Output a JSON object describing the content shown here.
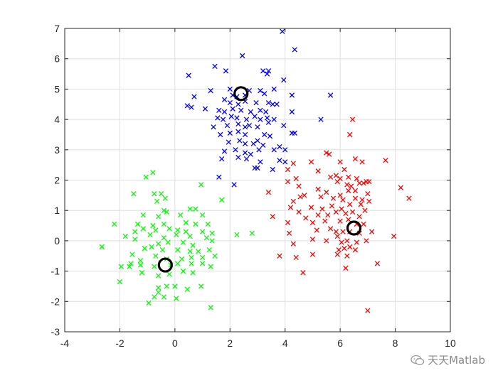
{
  "chart_data": {
    "type": "scatter",
    "title": "",
    "xlabel": "",
    "ylabel": "",
    "xlim": [
      -4,
      10
    ],
    "ylim": [
      -3,
      7
    ],
    "xticks": [
      -4,
      -2,
      0,
      2,
      4,
      6,
      8,
      10
    ],
    "yticks": [
      -3,
      -2,
      -1,
      0,
      1,
      2,
      3,
      4,
      5,
      6,
      7
    ],
    "grid": true,
    "legend": "none",
    "marker": "x",
    "series": [
      {
        "color": "#0000ff",
        "points": [
          [
            3.9,
            6.9
          ],
          [
            4.35,
            6.3
          ],
          [
            2.45,
            6.1
          ],
          [
            1.45,
            5.75
          ],
          [
            1.85,
            5.6
          ],
          [
            0.5,
            5.45
          ],
          [
            3.2,
            5.6
          ],
          [
            3.4,
            5.6
          ],
          [
            3.35,
            5.5
          ],
          [
            3.95,
            5.3
          ],
          [
            0.7,
            4.75
          ],
          [
            2.0,
            5.0
          ],
          [
            2.7,
            4.95
          ],
          [
            3.1,
            4.95
          ],
          [
            3.6,
            5.0
          ],
          [
            1.3,
            4.95
          ],
          [
            2.1,
            4.8
          ],
          [
            2.25,
            4.75
          ],
          [
            2.55,
            4.8
          ],
          [
            3.25,
            4.85
          ],
          [
            4.25,
            4.8
          ],
          [
            5.65,
            4.8
          ],
          [
            0.45,
            4.45
          ],
          [
            0.6,
            4.4
          ],
          [
            1.1,
            4.35
          ],
          [
            1.8,
            4.65
          ],
          [
            2.0,
            4.55
          ],
          [
            2.3,
            4.5
          ],
          [
            2.55,
            4.6
          ],
          [
            2.95,
            4.55
          ],
          [
            3.4,
            4.55
          ],
          [
            3.55,
            4.5
          ],
          [
            3.7,
            4.5
          ],
          [
            1.6,
            4.3
          ],
          [
            1.8,
            4.25
          ],
          [
            2.1,
            4.35
          ],
          [
            2.4,
            4.3
          ],
          [
            2.75,
            4.25
          ],
          [
            3.1,
            4.3
          ],
          [
            3.3,
            4.25
          ],
          [
            4.25,
            4.25
          ],
          [
            1.55,
            4.05
          ],
          [
            1.75,
            4.0
          ],
          [
            2.05,
            4.1
          ],
          [
            2.25,
            4.05
          ],
          [
            2.6,
            4.0
          ],
          [
            2.9,
            4.1
          ],
          [
            3.1,
            4.0
          ],
          [
            3.35,
            4.05
          ],
          [
            3.6,
            4.0
          ],
          [
            1.4,
            3.75
          ],
          [
            1.9,
            3.8
          ],
          [
            2.3,
            3.85
          ],
          [
            2.55,
            3.75
          ],
          [
            2.7,
            3.8
          ],
          [
            3.0,
            3.75
          ],
          [
            3.4,
            3.9
          ],
          [
            5.3,
            4.0
          ],
          [
            1.65,
            3.5
          ],
          [
            2.0,
            3.55
          ],
          [
            2.3,
            3.6
          ],
          [
            2.55,
            3.5
          ],
          [
            3.25,
            3.5
          ],
          [
            3.45,
            3.45
          ],
          [
            3.95,
            3.8
          ],
          [
            4.25,
            3.55
          ],
          [
            4.35,
            3.55
          ],
          [
            1.95,
            3.25
          ],
          [
            2.35,
            3.3
          ],
          [
            2.55,
            3.2
          ],
          [
            2.85,
            3.2
          ],
          [
            3.0,
            3.3
          ],
          [
            3.2,
            3.15
          ],
          [
            1.8,
            2.95
          ],
          [
            2.2,
            3.0
          ],
          [
            2.55,
            2.9
          ],
          [
            2.75,
            2.85
          ],
          [
            3.05,
            3.0
          ],
          [
            3.6,
            3.0
          ],
          [
            3.8,
            3.1
          ],
          [
            4.0,
            3.0
          ],
          [
            1.7,
            2.7
          ],
          [
            2.3,
            2.75
          ],
          [
            2.6,
            2.7
          ],
          [
            3.1,
            2.6
          ],
          [
            3.8,
            2.65
          ],
          [
            4.0,
            2.6
          ],
          [
            2.9,
            2.4
          ],
          [
            3.55,
            2.35
          ],
          [
            1.6,
            2.1
          ],
          [
            2.15,
            1.85
          ],
          [
            3.0,
            2.4
          ]
        ]
      },
      {
        "color": "#ff0000",
        "points": [
          [
            6.45,
            4.0
          ],
          [
            6.35,
            3.5
          ],
          [
            5.5,
            2.9
          ],
          [
            5.6,
            2.85
          ],
          [
            6.55,
            2.7
          ],
          [
            4.3,
            2.55
          ],
          [
            4.95,
            2.6
          ],
          [
            6.0,
            2.6
          ],
          [
            6.8,
            2.6
          ],
          [
            7.65,
            2.65
          ],
          [
            4.1,
            2.35
          ],
          [
            5.2,
            2.3
          ],
          [
            6.15,
            2.35
          ],
          [
            5.85,
            2.15
          ],
          [
            6.3,
            2.1
          ],
          [
            4.1,
            1.95
          ],
          [
            4.4,
            2.05
          ],
          [
            5.65,
            2.1
          ],
          [
            6.0,
            2.05
          ],
          [
            6.6,
            2.05
          ],
          [
            6.95,
            1.95
          ],
          [
            7.05,
            1.95
          ],
          [
            4.5,
            1.8
          ],
          [
            5.9,
            1.95
          ],
          [
            6.25,
            1.85
          ],
          [
            6.4,
            1.8
          ],
          [
            6.7,
            1.9
          ],
          [
            6.85,
            1.9
          ],
          [
            8.2,
            1.75
          ],
          [
            3.4,
            1.6
          ],
          [
            4.7,
            1.5
          ],
          [
            5.2,
            1.7
          ],
          [
            5.5,
            1.6
          ],
          [
            6.0,
            1.5
          ],
          [
            6.3,
            1.65
          ],
          [
            6.55,
            1.65
          ],
          [
            7.0,
            1.55
          ],
          [
            8.5,
            1.4
          ],
          [
            4.3,
            1.3
          ],
          [
            4.55,
            1.45
          ],
          [
            5.3,
            1.45
          ],
          [
            5.75,
            1.4
          ],
          [
            6.1,
            1.35
          ],
          [
            6.55,
            1.4
          ],
          [
            6.8,
            1.35
          ],
          [
            7.05,
            1.3
          ],
          [
            4.2,
            1.1
          ],
          [
            4.95,
            1.1
          ],
          [
            5.35,
            1.05
          ],
          [
            5.7,
            1.15
          ],
          [
            6.05,
            1.05
          ],
          [
            6.35,
            1.2
          ],
          [
            6.75,
            1.2
          ],
          [
            6.9,
            1.0
          ],
          [
            3.55,
            0.8
          ],
          [
            4.5,
            0.95
          ],
          [
            5.2,
            0.85
          ],
          [
            5.55,
            0.85
          ],
          [
            5.85,
            0.95
          ],
          [
            6.2,
            0.9
          ],
          [
            6.45,
            0.95
          ],
          [
            6.7,
            0.8
          ],
          [
            4.1,
            0.6
          ],
          [
            4.75,
            0.75
          ],
          [
            5.0,
            0.6
          ],
          [
            5.45,
            0.65
          ],
          [
            6.0,
            0.65
          ],
          [
            6.3,
            0.7
          ],
          [
            6.6,
            0.55
          ],
          [
            6.85,
            0.55
          ],
          [
            4.15,
            0.25
          ],
          [
            5.15,
            0.35
          ],
          [
            5.65,
            0.4
          ],
          [
            5.85,
            0.3
          ],
          [
            6.1,
            0.3
          ],
          [
            6.35,
            0.3
          ],
          [
            6.7,
            0.25
          ],
          [
            7.15,
            0.3
          ],
          [
            7.95,
            0.15
          ],
          [
            4.3,
            -0.1
          ],
          [
            5.0,
            0.05
          ],
          [
            5.5,
            0.0
          ],
          [
            5.9,
            0.15
          ],
          [
            6.05,
            -0.05
          ],
          [
            6.25,
            0.0
          ],
          [
            6.6,
            -0.05
          ],
          [
            6.95,
            0.0
          ],
          [
            5.95,
            -0.3
          ],
          [
            6.15,
            -0.25
          ],
          [
            6.35,
            -0.2
          ],
          [
            6.55,
            -0.3
          ],
          [
            4.4,
            -0.55
          ],
          [
            5.0,
            -0.45
          ],
          [
            5.9,
            -0.45
          ],
          [
            6.25,
            -0.5
          ],
          [
            3.8,
            -0.5
          ],
          [
            6.2,
            -0.9
          ],
          [
            7.35,
            -0.75
          ],
          [
            4.65,
            -1.05
          ],
          [
            7.0,
            -2.3
          ]
        ]
      },
      {
        "color": "#00ff00",
        "points": [
          [
            -0.8,
            2.25
          ],
          [
            -1.05,
            2.1
          ],
          [
            0.95,
            1.85
          ],
          [
            -0.5,
            1.55
          ],
          [
            -0.75,
            1.55
          ],
          [
            -1.5,
            1.55
          ],
          [
            -0.35,
            1.4
          ],
          [
            -0.65,
            1.3
          ],
          [
            0.55,
            1.05
          ],
          [
            0.75,
            1.05
          ],
          [
            1.7,
            1.35
          ],
          [
            -0.4,
            1.0
          ],
          [
            -0.3,
            0.95
          ],
          [
            0.2,
            0.85
          ],
          [
            -1.15,
            0.85
          ],
          [
            -0.6,
            0.8
          ],
          [
            1.0,
            0.85
          ],
          [
            -2.2,
            0.55
          ],
          [
            -1.35,
            0.55
          ],
          [
            -0.8,
            0.5
          ],
          [
            -0.4,
            0.55
          ],
          [
            0.4,
            0.6
          ],
          [
            0.75,
            0.55
          ],
          [
            1.2,
            0.55
          ],
          [
            -1.45,
            0.3
          ],
          [
            -1.15,
            0.4
          ],
          [
            -0.7,
            0.35
          ],
          [
            -0.2,
            0.4
          ],
          [
            0.1,
            0.35
          ],
          [
            0.4,
            0.3
          ],
          [
            1.0,
            0.3
          ],
          [
            1.35,
            0.25
          ],
          [
            -1.8,
            0.15
          ],
          [
            -1.45,
            0.05
          ],
          [
            -0.9,
            0.2
          ],
          [
            -0.4,
            0.1
          ],
          [
            0.05,
            0.2
          ],
          [
            0.55,
            0.15
          ],
          [
            1.15,
            0.1
          ],
          [
            -0.6,
            -0.1
          ],
          [
            -0.25,
            -0.05
          ],
          [
            0.3,
            -0.05
          ],
          [
            0.65,
            -0.15
          ],
          [
            1.35,
            0.0
          ],
          [
            2.25,
            0.2
          ],
          [
            2.8,
            0.25
          ],
          [
            -2.65,
            -0.2
          ],
          [
            -1.55,
            -0.45
          ],
          [
            -1.1,
            -0.25
          ],
          [
            -0.85,
            -0.2
          ],
          [
            -0.45,
            -0.3
          ],
          [
            0.1,
            -0.3
          ],
          [
            0.55,
            -0.35
          ],
          [
            0.85,
            -0.35
          ],
          [
            1.25,
            -0.3
          ],
          [
            -1.6,
            -0.75
          ],
          [
            -1.25,
            -0.65
          ],
          [
            -0.7,
            -0.5
          ],
          [
            -0.3,
            -0.6
          ],
          [
            0.25,
            -0.6
          ],
          [
            0.6,
            -0.55
          ],
          [
            1.0,
            -0.55
          ],
          [
            1.45,
            -0.5
          ],
          [
            -1.95,
            -0.85
          ],
          [
            -1.65,
            -0.85
          ],
          [
            -1.25,
            -0.8
          ],
          [
            -0.75,
            -0.85
          ],
          [
            -0.15,
            -0.8
          ],
          [
            0.1,
            -0.75
          ],
          [
            0.6,
            -0.75
          ],
          [
            1.0,
            -0.75
          ],
          [
            -2.0,
            -1.35
          ],
          [
            -1.2,
            -1.05
          ],
          [
            -0.6,
            -1.15
          ],
          [
            -0.2,
            -1.1
          ],
          [
            0.3,
            -1.0
          ],
          [
            0.65,
            -1.05
          ],
          [
            1.3,
            -0.85
          ],
          [
            -0.6,
            -1.55
          ],
          [
            -0.3,
            -1.5
          ],
          [
            0.0,
            -1.5
          ],
          [
            -0.6,
            -1.7
          ],
          [
            0.45,
            -1.6
          ],
          [
            0.95,
            -1.5
          ],
          [
            -0.4,
            -1.85
          ],
          [
            0.05,
            -1.9
          ],
          [
            -0.75,
            -1.85
          ],
          [
            -0.95,
            -2.05
          ],
          [
            1.3,
            -2.2
          ]
        ]
      }
    ],
    "centroids": {
      "color": "#000000",
      "marker": "o",
      "points": [
        [
          2.4,
          4.85
        ],
        [
          6.5,
          0.42
        ],
        [
          -0.35,
          -0.8
        ]
      ]
    }
  },
  "watermark": {
    "text": "天天Matlab",
    "icon": "wechat-icon"
  }
}
